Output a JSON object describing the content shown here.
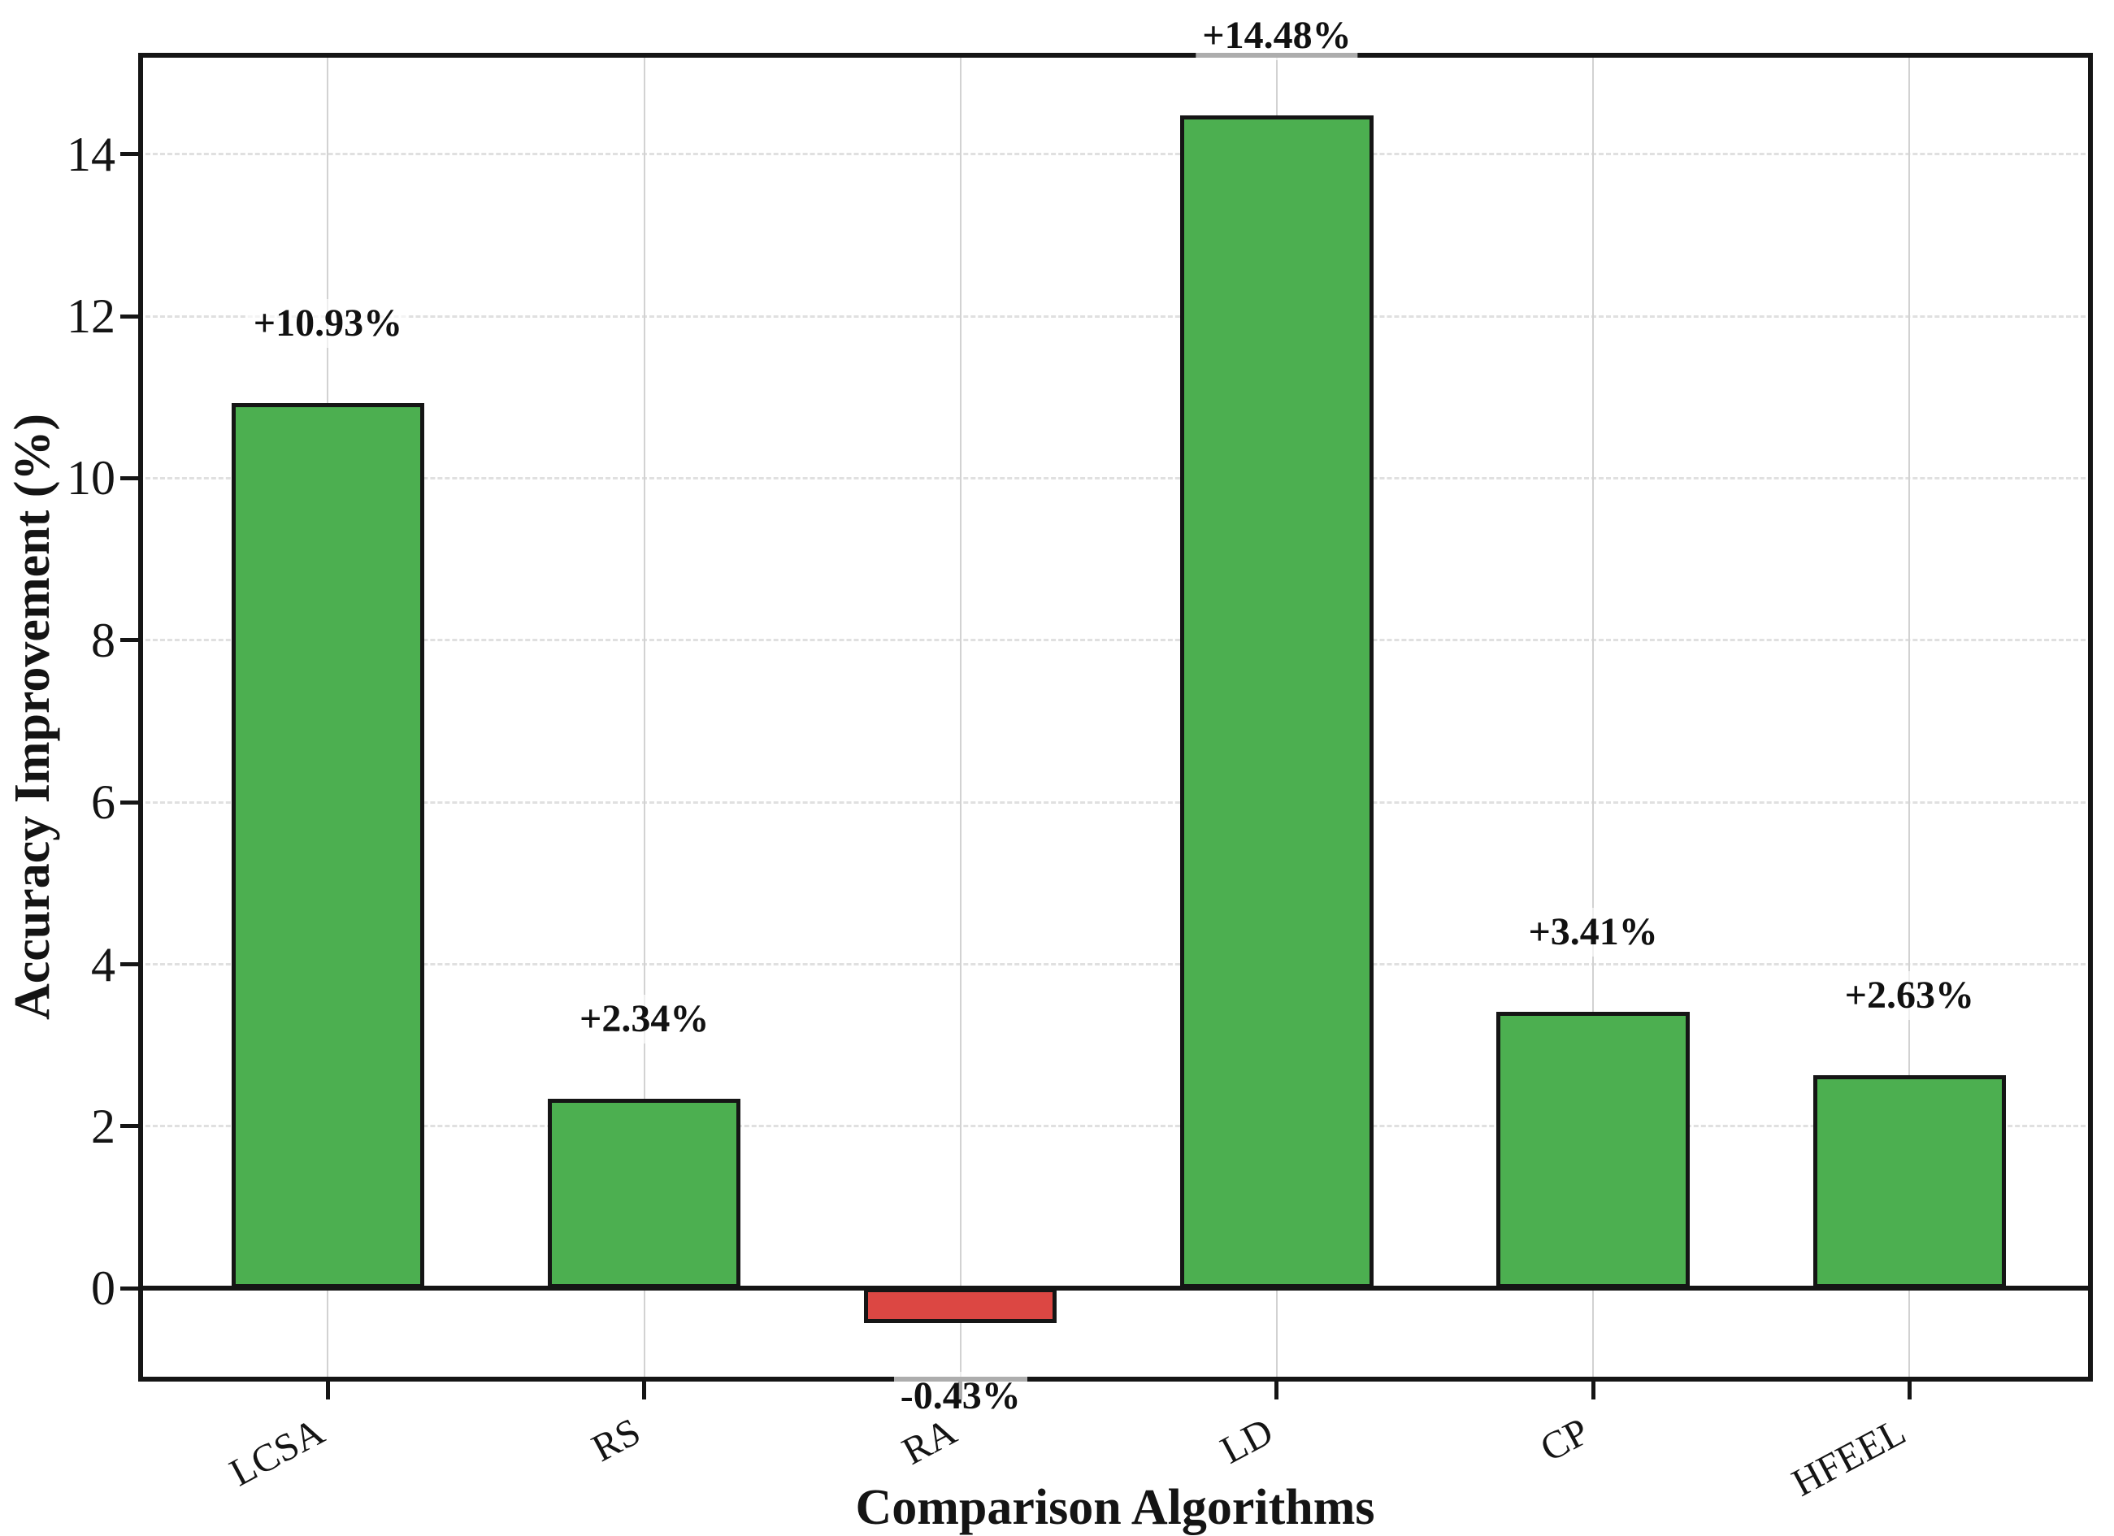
{
  "chart_data": {
    "type": "bar",
    "title": "",
    "xlabel": "Comparison Algorithms",
    "ylabel": "Accuracy Improvement (%)",
    "categories": [
      "LCSA",
      "RS",
      "RA",
      "LD",
      "CP",
      "HFEEL"
    ],
    "values": [
      10.93,
      2.34,
      -0.43,
      14.48,
      3.41,
      2.63
    ],
    "bar_value_labels": [
      "+10.93%",
      "+2.34%",
      "-0.43%",
      "+14.48%",
      "+3.41%",
      "+2.63%"
    ],
    "yticks": [
      0,
      2,
      4,
      6,
      8,
      10,
      12,
      14
    ],
    "ylim": [
      -1.15,
      15.25
    ],
    "xlim": [
      -0.6,
      5.58
    ],
    "bar_width_units": 0.61,
    "grid": {
      "horizontal": "dashed light gray at each y tick",
      "vertical": "solid light gray at each category center",
      "zero_line": "thick solid black at y=0"
    },
    "legend": "none",
    "colors": {
      "positive_bar": "#4caf50",
      "negative_bar": "#dc4743",
      "bar_edge": "#151515",
      "axis": "#151515",
      "h_grid": "#e0e0e0",
      "v_grid": "#d2d2d2",
      "text": "#141414",
      "background": "#ffffff"
    },
    "x_tick_label_rotation_deg": 28
  }
}
